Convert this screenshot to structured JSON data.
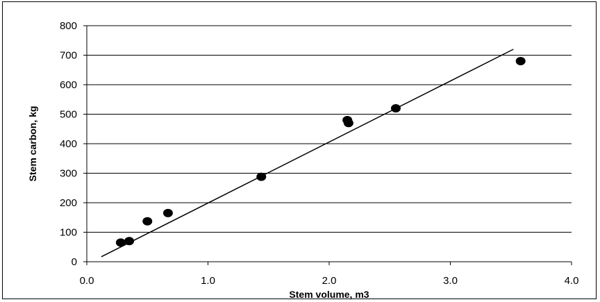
{
  "chart_data": {
    "type": "scatter",
    "title": "",
    "xlabel": "Stem volume, m3",
    "ylabel": "Stem carbon, kg",
    "xlim": [
      0,
      4
    ],
    "ylim": [
      0,
      800
    ],
    "x_ticks": [
      "0.0",
      "1.0",
      "2.0",
      "3.0",
      "4.0"
    ],
    "y_ticks": [
      "0",
      "100",
      "200",
      "300",
      "400",
      "500",
      "600",
      "700",
      "800"
    ],
    "grid": "horizontal",
    "legend": "none",
    "series": [
      {
        "points": [
          {
            "x": 0.28,
            "y": 65
          },
          {
            "x": 0.35,
            "y": 70
          },
          {
            "x": 0.5,
            "y": 137
          },
          {
            "x": 0.67,
            "y": 165
          },
          {
            "x": 1.44,
            "y": 288
          },
          {
            "x": 2.15,
            "y": 480
          },
          {
            "x": 2.16,
            "y": 470
          },
          {
            "x": 2.55,
            "y": 520
          },
          {
            "x": 3.58,
            "y": 680
          }
        ],
        "color": "#000000"
      },
      {
        "type": "line",
        "points": [
          {
            "x": 0.12,
            "y": 17
          },
          {
            "x": 3.52,
            "y": 720
          }
        ],
        "color": "#000000"
      }
    ]
  }
}
